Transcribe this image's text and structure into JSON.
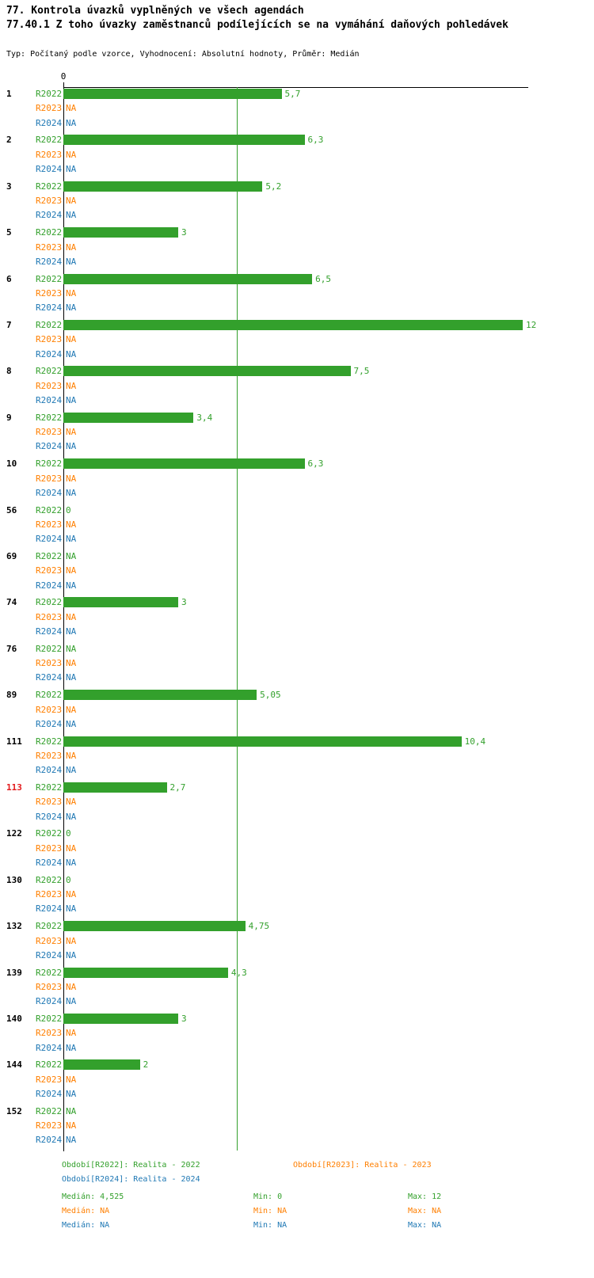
{
  "title_line1": "77. Kontrola úvazků vyplněných ve všech agendách",
  "title_line2": "77.40.1 Z toho úvazky zaměstnanců podílejících se na vymáhání daňových pohledávek",
  "subtitle": "Typ: Počítaný podle vzorce, Vyhodnocení: Absolutní hodnoty, Průměr: Medián",
  "axis": {
    "zero_tick": "0"
  },
  "chart_data": {
    "type": "bar",
    "orientation": "horizontal",
    "xlim": [
      0,
      12
    ],
    "median_value": 4.525,
    "median_line_shown": true,
    "grid": false,
    "series": [
      "R2022",
      "R2023",
      "R2024"
    ],
    "series_colors": {
      "R2022": "#33a02c",
      "R2023": "#ff7f00",
      "R2024": "#1f78b4"
    },
    "highlight_color": "#e31a1c",
    "groups": [
      {
        "id": "1",
        "highlight": false,
        "values": [
          5.7,
          null,
          null
        ],
        "labels": [
          "5,7",
          "NA",
          "NA"
        ]
      },
      {
        "id": "2",
        "highlight": false,
        "values": [
          6.3,
          null,
          null
        ],
        "labels": [
          "6,3",
          "NA",
          "NA"
        ]
      },
      {
        "id": "3",
        "highlight": false,
        "values": [
          5.2,
          null,
          null
        ],
        "labels": [
          "5,2",
          "NA",
          "NA"
        ]
      },
      {
        "id": "5",
        "highlight": false,
        "values": [
          3,
          null,
          null
        ],
        "labels": [
          "3",
          "NA",
          "NA"
        ]
      },
      {
        "id": "6",
        "highlight": false,
        "values": [
          6.5,
          null,
          null
        ],
        "labels": [
          "6,5",
          "NA",
          "NA"
        ]
      },
      {
        "id": "7",
        "highlight": false,
        "values": [
          12,
          null,
          null
        ],
        "labels": [
          "12",
          "NA",
          "NA"
        ]
      },
      {
        "id": "8",
        "highlight": false,
        "values": [
          7.5,
          null,
          null
        ],
        "labels": [
          "7,5",
          "NA",
          "NA"
        ]
      },
      {
        "id": "9",
        "highlight": false,
        "values": [
          3.4,
          null,
          null
        ],
        "labels": [
          "3,4",
          "NA",
          "NA"
        ]
      },
      {
        "id": "10",
        "highlight": false,
        "values": [
          6.3,
          null,
          null
        ],
        "labels": [
          "6,3",
          "NA",
          "NA"
        ]
      },
      {
        "id": "56",
        "highlight": false,
        "values": [
          0,
          null,
          null
        ],
        "labels": [
          "0",
          "NA",
          "NA"
        ]
      },
      {
        "id": "69",
        "highlight": false,
        "values": [
          null,
          null,
          null
        ],
        "labels": [
          "NA",
          "NA",
          "NA"
        ]
      },
      {
        "id": "74",
        "highlight": false,
        "values": [
          3,
          null,
          null
        ],
        "labels": [
          "3",
          "NA",
          "NA"
        ]
      },
      {
        "id": "76",
        "highlight": false,
        "values": [
          null,
          null,
          null
        ],
        "labels": [
          "NA",
          "NA",
          "NA"
        ]
      },
      {
        "id": "89",
        "highlight": false,
        "values": [
          5.05,
          null,
          null
        ],
        "labels": [
          "5,05",
          "NA",
          "NA"
        ]
      },
      {
        "id": "111",
        "highlight": false,
        "values": [
          10.4,
          null,
          null
        ],
        "labels": [
          "10,4",
          "NA",
          "NA"
        ]
      },
      {
        "id": "113",
        "highlight": true,
        "values": [
          2.7,
          null,
          null
        ],
        "labels": [
          "2,7",
          "NA",
          "NA"
        ]
      },
      {
        "id": "122",
        "highlight": false,
        "values": [
          0,
          null,
          null
        ],
        "labels": [
          "0",
          "NA",
          "NA"
        ]
      },
      {
        "id": "130",
        "highlight": false,
        "values": [
          0,
          null,
          null
        ],
        "labels": [
          "0",
          "NA",
          "NA"
        ]
      },
      {
        "id": "132",
        "highlight": false,
        "values": [
          4.75,
          null,
          null
        ],
        "labels": [
          "4,75",
          "NA",
          "NA"
        ]
      },
      {
        "id": "139",
        "highlight": false,
        "values": [
          4.3,
          null,
          null
        ],
        "labels": [
          "4,3",
          "NA",
          "NA"
        ]
      },
      {
        "id": "140",
        "highlight": false,
        "values": [
          3,
          null,
          null
        ],
        "labels": [
          "3",
          "NA",
          "NA"
        ]
      },
      {
        "id": "144",
        "highlight": false,
        "values": [
          2,
          null,
          null
        ],
        "labels": [
          "2",
          "NA",
          "NA"
        ]
      },
      {
        "id": "152",
        "highlight": false,
        "values": [
          null,
          null,
          null
        ],
        "labels": [
          "NA",
          "NA",
          "NA"
        ]
      }
    ]
  },
  "footer": {
    "legend": [
      {
        "series": "R2022",
        "label": "Období[R2022]: Realita - 2022"
      },
      {
        "series": "R2023",
        "label": "Období[R2023]: Realita - 2023"
      },
      {
        "series": "R2024",
        "label": "Období[R2024]: Realita - 2024"
      }
    ],
    "stats": [
      {
        "series": "R2022",
        "median": "Medián: 4,525",
        "min": "Min: 0",
        "max": "Max: 12"
      },
      {
        "series": "R2023",
        "median": "Medián: NA",
        "min": "Min: NA",
        "max": "Max: NA"
      },
      {
        "series": "R2024",
        "median": "Medián: NA",
        "min": "Min: NA",
        "max": "Max: NA"
      }
    ]
  }
}
